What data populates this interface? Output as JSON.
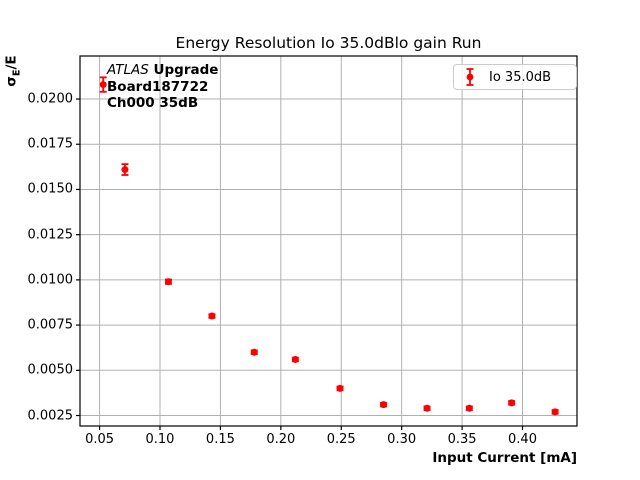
{
  "colors": {
    "series_red": "#ff0000",
    "grid": "#b0b0b0",
    "spine": "#000000",
    "legend_border": "#cccccc",
    "background": "#ffffff",
    "text": "#000000"
  },
  "chart_data": {
    "type": "scatter",
    "title": "Energy Resolution Io 35.0dBlo gain Run",
    "xlabel": "Input Current [mA]",
    "ylabel": "σE/E",
    "ylabel_parts": {
      "sigma": "σ",
      "sub": "E",
      "rest": "/E"
    },
    "grid": true,
    "legend_position": "upper right",
    "xlim": [
      0.0338,
      0.4451
    ],
    "ylim": [
      0.00192,
      0.02238
    ],
    "xticks": {
      "values": [
        0.05,
        0.1,
        0.15,
        0.2,
        0.25,
        0.3,
        0.35,
        0.4
      ],
      "labels": [
        "0.05",
        "0.10",
        "0.15",
        "0.20",
        "0.25",
        "0.30",
        "0.35",
        "0.40"
      ]
    },
    "yticks": {
      "values": [
        0.0025,
        0.005,
        0.0075,
        0.01,
        0.0125,
        0.015,
        0.0175,
        0.02
      ],
      "labels": [
        "0.0025",
        "0.0050",
        "0.0075",
        "0.0100",
        "0.0125",
        "0.0150",
        "0.0175",
        "0.0200"
      ]
    },
    "series": [
      {
        "name": "Io 35.0dB",
        "color": "#ff0000",
        "marker": "circle-errorbar",
        "x": [
          0.053,
          0.071,
          0.107,
          0.143,
          0.178,
          0.212,
          0.249,
          0.285,
          0.321,
          0.356,
          0.391,
          0.427
        ],
        "y": [
          0.0208,
          0.0161,
          0.0099,
          0.008,
          0.006,
          0.0056,
          0.004,
          0.0031,
          0.0029,
          0.0029,
          0.0032,
          0.0027
        ],
        "yerr": [
          0.0004,
          0.0003,
          0.00012,
          0.0001,
          0.0001,
          0.0001,
          0.0001,
          0.0001,
          0.0001,
          0.0001,
          0.0001,
          0.0001
        ]
      }
    ],
    "annotation": {
      "line1_italic": "ATLAS",
      "line1_bold": " Upgrade",
      "line2": "Board187722",
      "line3": "Ch000 35dB"
    },
    "legend": {
      "entries": [
        {
          "label": "Io 35.0dB",
          "color": "#ff0000",
          "marker": "errorbar-dot"
        }
      ]
    }
  }
}
